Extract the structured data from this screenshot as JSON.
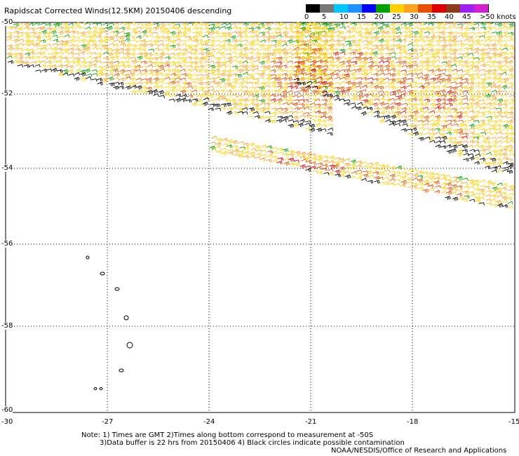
{
  "title": "Rapidscat Corrected Winds(12.5KM) 20150406 descending",
  "colorbar": {
    "labels": [
      "0",
      "5",
      "10",
      "15",
      "20",
      "25",
      "30",
      "35",
      "40",
      "45",
      ">50 knots"
    ],
    "colors": [
      "#000000",
      "#777777",
      "#00c8ff",
      "#1e90ff",
      "#0000ff",
      "#00a000",
      "#ffd000",
      "#ffa020",
      "#e65000",
      "#e00000",
      "#8b3a1a",
      "#a020f0",
      "#d020d0"
    ]
  },
  "axes": {
    "x_ticks": [
      "-30",
      "-27",
      "-24",
      "-21",
      "-18",
      "-15"
    ],
    "y_ticks": [
      "-50",
      "-52",
      "-54",
      "-56",
      "-58",
      "-60"
    ]
  },
  "notes": {
    "line1": "Note: 1) Times are GMT 2)Times along bottom correspond to measurement at -50S",
    "line2": "3)Data buffer is 22 hrs from 20150406 4) Black circles indicate possible contamination",
    "line3": "NOAA/NESDIS/Office of Research and Applications"
  },
  "wind_colors": {
    "calm": "#000000",
    "light": "#00a000",
    "moderate": "#ffd000",
    "fresh": "#ffa020",
    "strong": "#e65000",
    "gale": "#e00000"
  }
}
